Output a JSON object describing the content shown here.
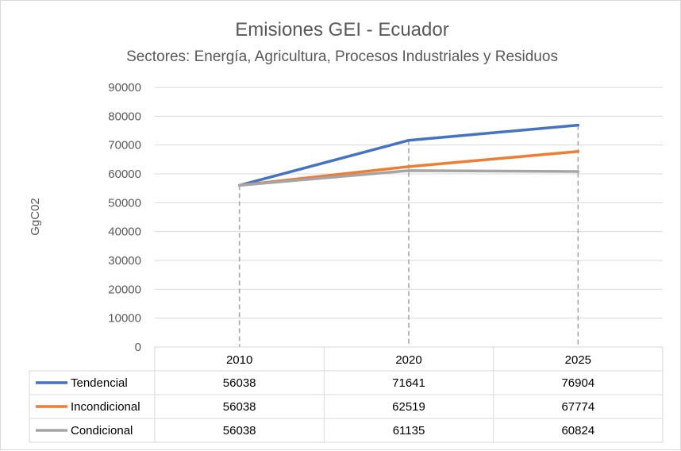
{
  "chart_data": {
    "type": "line",
    "title": "Emisiones GEI - Ecuador",
    "subtitle": "Sectores: Energía, Agricultura, Procesos Industriales y Residuos",
    "ylabel": "GgC02",
    "xlabel": "",
    "ylim": [
      0,
      90000
    ],
    "yticks": [
      "0",
      "10000",
      "20000",
      "30000",
      "40000",
      "50000",
      "60000",
      "70000",
      "80000",
      "90000"
    ],
    "categories": [
      "2010",
      "2020",
      "2025"
    ],
    "grid": true,
    "legend": "data-table",
    "series": [
      {
        "name": "Tendencial",
        "values": [
          56038,
          71641,
          76904
        ],
        "color": "#4472c4"
      },
      {
        "name": "Incondicional",
        "values": [
          56038,
          62519,
          67774
        ],
        "color": "#ed7d31"
      },
      {
        "name": "Condicional",
        "values": [
          56038,
          61135,
          60824
        ],
        "color": "#a5a5a5"
      }
    ]
  }
}
